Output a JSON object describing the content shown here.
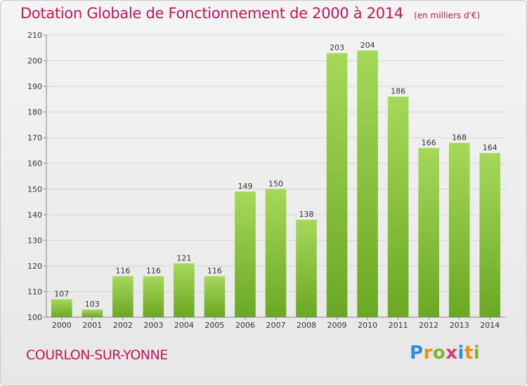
{
  "header": {
    "title": "Dotation Globale de Fonctionnement de 2000 à 2014",
    "unit": "(en milliers d'€)"
  },
  "footer": {
    "commune": "COURLON-SUR-YONNE",
    "brand": "Proxiti"
  },
  "colors": {
    "title": "#c2185b",
    "bar_light": "#a6d85a",
    "bar_dark": "#6aa823"
  },
  "chart_data": {
    "type": "bar",
    "categories": [
      "2000",
      "2001",
      "2002",
      "2003",
      "2004",
      "2005",
      "2006",
      "2007",
      "2008",
      "2009",
      "2010",
      "2011",
      "2012",
      "2013",
      "2014"
    ],
    "values": [
      107,
      103,
      116,
      116,
      121,
      116,
      149,
      150,
      138,
      203,
      204,
      186,
      166,
      168,
      164
    ],
    "ylim": [
      100,
      210
    ],
    "yticks": [
      100,
      110,
      120,
      130,
      140,
      150,
      160,
      170,
      180,
      190,
      200,
      210
    ],
    "grid": true,
    "title": "Dotation Globale de Fonctionnement de 2000 à 2014",
    "ylabel": "",
    "xlabel": ""
  }
}
